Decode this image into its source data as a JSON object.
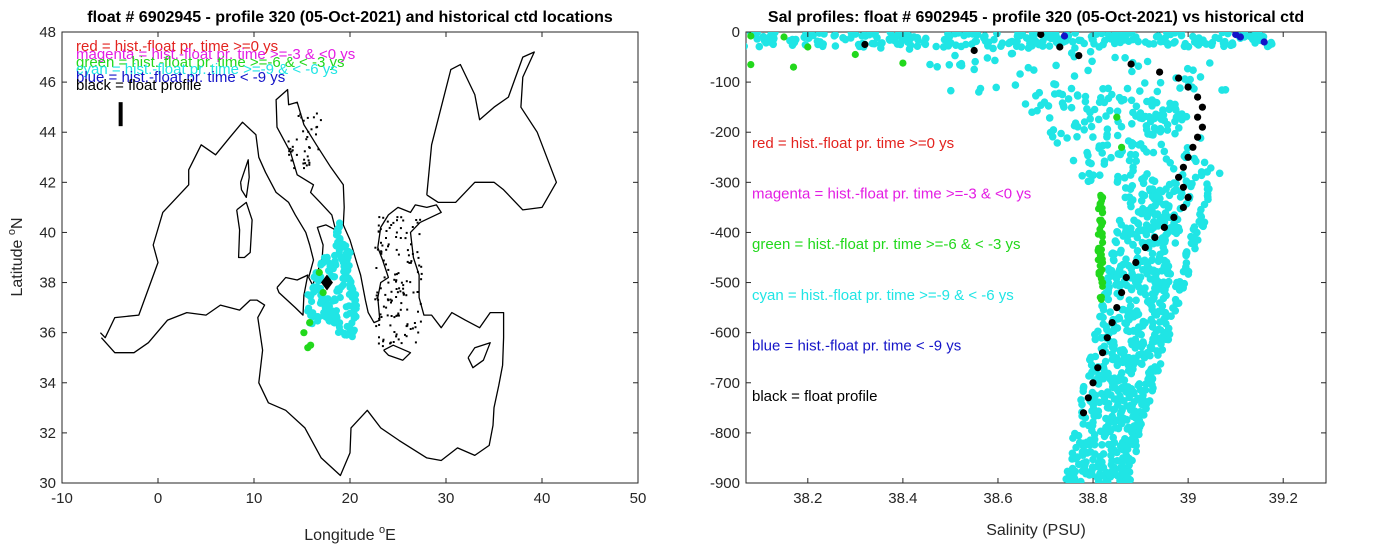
{
  "colors": {
    "red": "#e3231f",
    "magenta": "#e31de3",
    "green": "#22d81c",
    "cyan": "#20e5e5",
    "blue": "#1414c8",
    "black": "#000000",
    "axis": "#262626"
  },
  "chart_data": [
    {
      "type": "scatter",
      "title": "float # 6902945 - profile 320 (05-Oct-2021) and historical ctd locations",
      "xlabel": "Longitude",
      "xlabel_sup": "o",
      "xlabel_tail": "E",
      "ylabel": "Latitude",
      "ylabel_sup": "o",
      "ylabel_tail": "N",
      "xlim": [
        -10,
        50
      ],
      "ylim": [
        30,
        48
      ],
      "xticks": [
        "-10",
        "0",
        "10",
        "20",
        "30",
        "40",
        "50"
      ],
      "yticks": [
        "30",
        "32",
        "34",
        "36",
        "38",
        "40",
        "42",
        "44",
        "46",
        "48"
      ],
      "legend": [
        {
          "text": "red = hist.-float pr. time >=0 ys",
          "color": "red"
        },
        {
          "text": "magenta = hist.-float pr. time >=-3 & <0 ys",
          "color": "magenta"
        },
        {
          "text": "green = hist.-float pr. time >=-6 & < -3 ys",
          "color": "green"
        },
        {
          "text": "cyan = hist.-float pr. time >=-9 & < -6 ys",
          "color": "cyan"
        },
        {
          "text": "blue = hist.-float pr. time < -9 ys",
          "color": "blue"
        },
        {
          "text": "black = float profile",
          "color": "black"
        }
      ],
      "float_position": {
        "lon": 17.6,
        "lat": 38.0
      },
      "hist_cyan": [
        [
          18.9,
          40.2
        ],
        [
          19.1,
          39.8
        ],
        [
          19.4,
          39.4
        ],
        [
          19.6,
          39.0
        ],
        [
          19.8,
          38.6
        ],
        [
          20.0,
          38.2
        ],
        [
          20.2,
          37.8
        ],
        [
          20.4,
          37.4
        ],
        [
          20.5,
          37.0
        ],
        [
          20.6,
          36.6
        ],
        [
          20.4,
          36.2
        ],
        [
          20.1,
          36.0
        ],
        [
          19.6,
          36.1
        ],
        [
          19.0,
          36.2
        ],
        [
          18.5,
          36.4
        ],
        [
          18.0,
          36.8
        ],
        [
          17.5,
          37.2
        ],
        [
          17.0,
          37.6
        ],
        [
          16.6,
          37.9
        ],
        [
          16.2,
          37.7
        ],
        [
          15.8,
          37.4
        ],
        [
          15.7,
          37.0
        ],
        [
          16.2,
          36.8
        ],
        [
          16.8,
          36.6
        ],
        [
          17.3,
          36.8
        ],
        [
          17.8,
          37.0
        ],
        [
          18.3,
          37.2
        ],
        [
          18.8,
          37.6
        ],
        [
          19.2,
          38.0
        ],
        [
          19.5,
          38.3
        ],
        [
          19.3,
          38.8
        ],
        [
          19.0,
          39.2
        ],
        [
          18.7,
          39.6
        ],
        [
          18.5,
          38.9
        ],
        [
          18.2,
          38.4
        ],
        [
          17.9,
          38.6
        ],
        [
          17.5,
          38.9
        ],
        [
          17.1,
          38.6
        ],
        [
          16.8,
          38.2
        ],
        [
          16.4,
          38.3
        ],
        [
          16.9,
          37.3
        ],
        [
          17.7,
          36.5
        ],
        [
          18.6,
          36.7
        ],
        [
          19.8,
          36.9
        ],
        [
          20.1,
          37.6
        ],
        [
          19.9,
          39.2
        ],
        [
          18.7,
          40.0
        ],
        [
          16.0,
          36.5
        ]
      ],
      "hist_green": [
        [
          15.2,
          36.0
        ],
        [
          15.8,
          36.4
        ],
        [
          15.6,
          35.4
        ],
        [
          15.9,
          35.5
        ],
        [
          16.8,
          38.4
        ],
        [
          17.2,
          37.6
        ]
      ],
      "xy_ranges_note": ""
    },
    {
      "type": "scatter",
      "title": "Sal profiles: float # 6902945 - profile 320 (05-Oct-2021) vs historical ctd",
      "xlabel": "Salinity (PSU)",
      "ylabel": "",
      "xlim": [
        38.07,
        39.29
      ],
      "ylim": [
        -900,
        0
      ],
      "xticks": [
        "38.2",
        "38.4",
        "38.6",
        "38.8",
        "39",
        "39.2"
      ],
      "yticks": [
        "0",
        "-100",
        "-200",
        "-300",
        "-400",
        "-500",
        "-600",
        "-700",
        "-800",
        "-900"
      ],
      "legend": [
        {
          "text": "red = hist.-float pr. time >=0 ys",
          "color": "red"
        },
        {
          "text": "magenta = hist.-float pr. time >=-3 & <0 ys",
          "color": "magenta"
        },
        {
          "text": "green = hist.-float pr. time >=-6 & < -3 ys",
          "color": "green"
        },
        {
          "text": "cyan = hist.-float pr. time >=-9 & < -6 ys",
          "color": "cyan"
        },
        {
          "text": "blue = hist.-float pr. time < -9 ys",
          "color": "blue"
        },
        {
          "text": "black = float profile",
          "color": "black"
        }
      ],
      "series": [
        {
          "color": "black",
          "points": [
            [
              38.32,
              -25
            ],
            [
              38.55,
              -37
            ],
            [
              38.69,
              -5
            ],
            [
              38.73,
              -30
            ],
            [
              38.77,
              -47
            ],
            [
              38.88,
              -64
            ],
            [
              38.94,
              -80
            ],
            [
              38.98,
              -92
            ],
            [
              39.0,
              -110
            ],
            [
              39.02,
              -130
            ],
            [
              39.03,
              -150
            ],
            [
              39.02,
              -170
            ],
            [
              39.03,
              -190
            ],
            [
              39.02,
              -210
            ],
            [
              39.01,
              -230
            ],
            [
              39.0,
              -250
            ],
            [
              38.99,
              -270
            ],
            [
              38.98,
              -290
            ],
            [
              38.99,
              -310
            ],
            [
              39.0,
              -330
            ],
            [
              38.99,
              -350
            ],
            [
              38.97,
              -370
            ],
            [
              38.95,
              -390
            ],
            [
              38.93,
              -410
            ],
            [
              38.91,
              -430
            ],
            [
              38.89,
              -460
            ],
            [
              38.87,
              -490
            ],
            [
              38.86,
              -520
            ],
            [
              38.85,
              -550
            ],
            [
              38.84,
              -580
            ],
            [
              38.83,
              -610
            ],
            [
              38.82,
              -640
            ],
            [
              38.81,
              -670
            ],
            [
              38.8,
              -700
            ],
            [
              38.79,
              -730
            ],
            [
              38.78,
              -760
            ]
          ]
        },
        {
          "color": "blue",
          "points": [
            [
              39.11,
              -10
            ],
            [
              39.16,
              -20
            ],
            [
              38.74,
              -8
            ],
            [
              39.1,
              -5
            ]
          ]
        }
      ],
      "green_streaks": [
        [
          38.08,
          -8
        ],
        [
          38.15,
          -10
        ],
        [
          38.2,
          -30
        ],
        [
          38.3,
          -45
        ],
        [
          38.4,
          -62
        ],
        [
          38.08,
          -65
        ],
        [
          38.17,
          -70
        ],
        [
          38.85,
          -170
        ],
        [
          38.86,
          -230
        ],
        [
          38.82,
          -330
        ],
        [
          38.82,
          -360
        ],
        [
          38.82,
          -380
        ],
        [
          38.82,
          -420
        ],
        [
          38.82,
          -460
        ],
        [
          38.82,
          -500
        ]
      ]
    }
  ]
}
